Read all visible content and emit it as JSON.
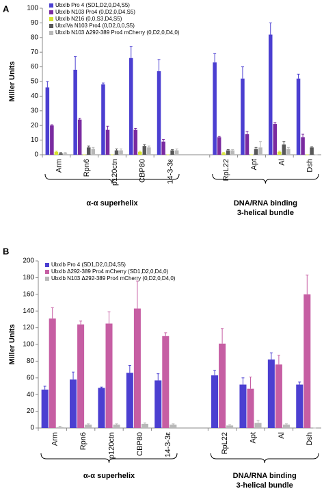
{
  "chart_data": [
    {
      "type": "bar",
      "panel": "A",
      "y_label": "Miller Units",
      "categories": [
        "Arm",
        "Rpn6",
        "p120ctn",
        "CBP80",
        "14-3-3ε",
        null,
        "RpL22",
        "Apt",
        "Al",
        "Dsh"
      ],
      "groups": [
        [
          "α-α superhelix"
        ],
        [
          "DNA/RNA binding",
          "3-helical bundle"
        ]
      ],
      "ylim": [
        0,
        100
      ],
      "yticks": [
        0,
        10,
        20,
        30,
        40,
        50,
        60,
        70,
        80,
        90,
        100
      ],
      "legend": "top-left",
      "series": [
        {
          "name": "UbxIb Pro 4 (SD1,D2,0,D4,S5)",
          "color": "#4b3fd1",
          "values": [
            46,
            58,
            48,
            66,
            57,
            null,
            63,
            52,
            82,
            52
          ],
          "errors": [
            4,
            9,
            1,
            8,
            8,
            null,
            6,
            8,
            8,
            3
          ]
        },
        {
          "name": "UbxIb N103 Pro4 (0,D2,0,D4,S5)",
          "color": "#7a2aa0",
          "values": [
            20,
            24,
            17,
            17,
            9,
            null,
            12,
            14,
            21,
            12
          ],
          "errors": [
            0.5,
            1,
            2.5,
            1,
            1.5,
            null,
            0.5,
            2,
            1,
            2
          ]
        },
        {
          "name": "UbxIb N216 (0,0,S3,D4,S5)",
          "color": "#d6e22e",
          "values": [
            2,
            0,
            0,
            2,
            0,
            null,
            1,
            0,
            2,
            0
          ],
          "errors": [
            0.5,
            0,
            0,
            0.5,
            0,
            null,
            0.5,
            0,
            0.5,
            0
          ]
        },
        {
          "name": "UbxIVa N103 Pro4 (0,D2,0,0,S5)",
          "color": "#585858",
          "values": [
            1,
            5,
            3,
            6,
            3,
            null,
            3,
            4,
            7,
            5
          ],
          "errors": [
            0.5,
            1,
            1,
            1,
            0.5,
            null,
            0.5,
            1,
            2,
            0.5
          ]
        },
        {
          "name": "UbxIb N103 Δ292-389 Pro4 mCherry (0,D2,0,D4,0)",
          "color": "#b8b8b8",
          "values": [
            1,
            4,
            3,
            5,
            3,
            null,
            3,
            5,
            4,
            0
          ],
          "errors": [
            0.5,
            1,
            1,
            1,
            1,
            null,
            0.5,
            4,
            1,
            0
          ]
        }
      ]
    },
    {
      "type": "bar",
      "panel": "B",
      "y_label": "Miller Units",
      "categories": [
        "Arm",
        "Rpn6",
        "p120ctn",
        "CBP80",
        "14-3-3ε",
        null,
        "RpL22",
        "Apt",
        "Al",
        "Dsh"
      ],
      "groups": [
        [
          "α-α superhelix"
        ],
        [
          "DNA/RNA binding",
          "3-helical bundle"
        ]
      ],
      "ylim": [
        0,
        200
      ],
      "yticks": [
        0,
        20,
        40,
        60,
        80,
        100,
        120,
        140,
        160,
        180,
        200
      ],
      "legend": "top-left",
      "series": [
        {
          "name": "UbxIb Pro 4 (SD1,D2,0,D4,S5)",
          "color": "#4b3fd1",
          "values": [
            46,
            58,
            48,
            66,
            57,
            null,
            63,
            52,
            82,
            52
          ],
          "errors": [
            4,
            9,
            1,
            9,
            8,
            null,
            6,
            8,
            8,
            3
          ]
        },
        {
          "name": "UbxIb Δ292-389 Pro4 mCherry (SD1,D2,0,D4,0)",
          "color": "#c65ea3",
          "values": [
            131,
            124,
            125,
            143,
            110,
            null,
            101,
            47,
            76,
            160
          ],
          "errors": [
            13,
            4,
            14,
            33,
            4,
            null,
            18,
            14,
            11,
            23
          ]
        },
        {
          "name": "UbxIb N103 Δ292-389 Pro4 mCherry (0,D2,0,D4,0)",
          "color": "#b8b8b8",
          "values": [
            1,
            4,
            4,
            5,
            4,
            null,
            3,
            6,
            4,
            0
          ],
          "errors": [
            1,
            1,
            1,
            1,
            1,
            null,
            1,
            3,
            1,
            0
          ]
        }
      ]
    }
  ]
}
